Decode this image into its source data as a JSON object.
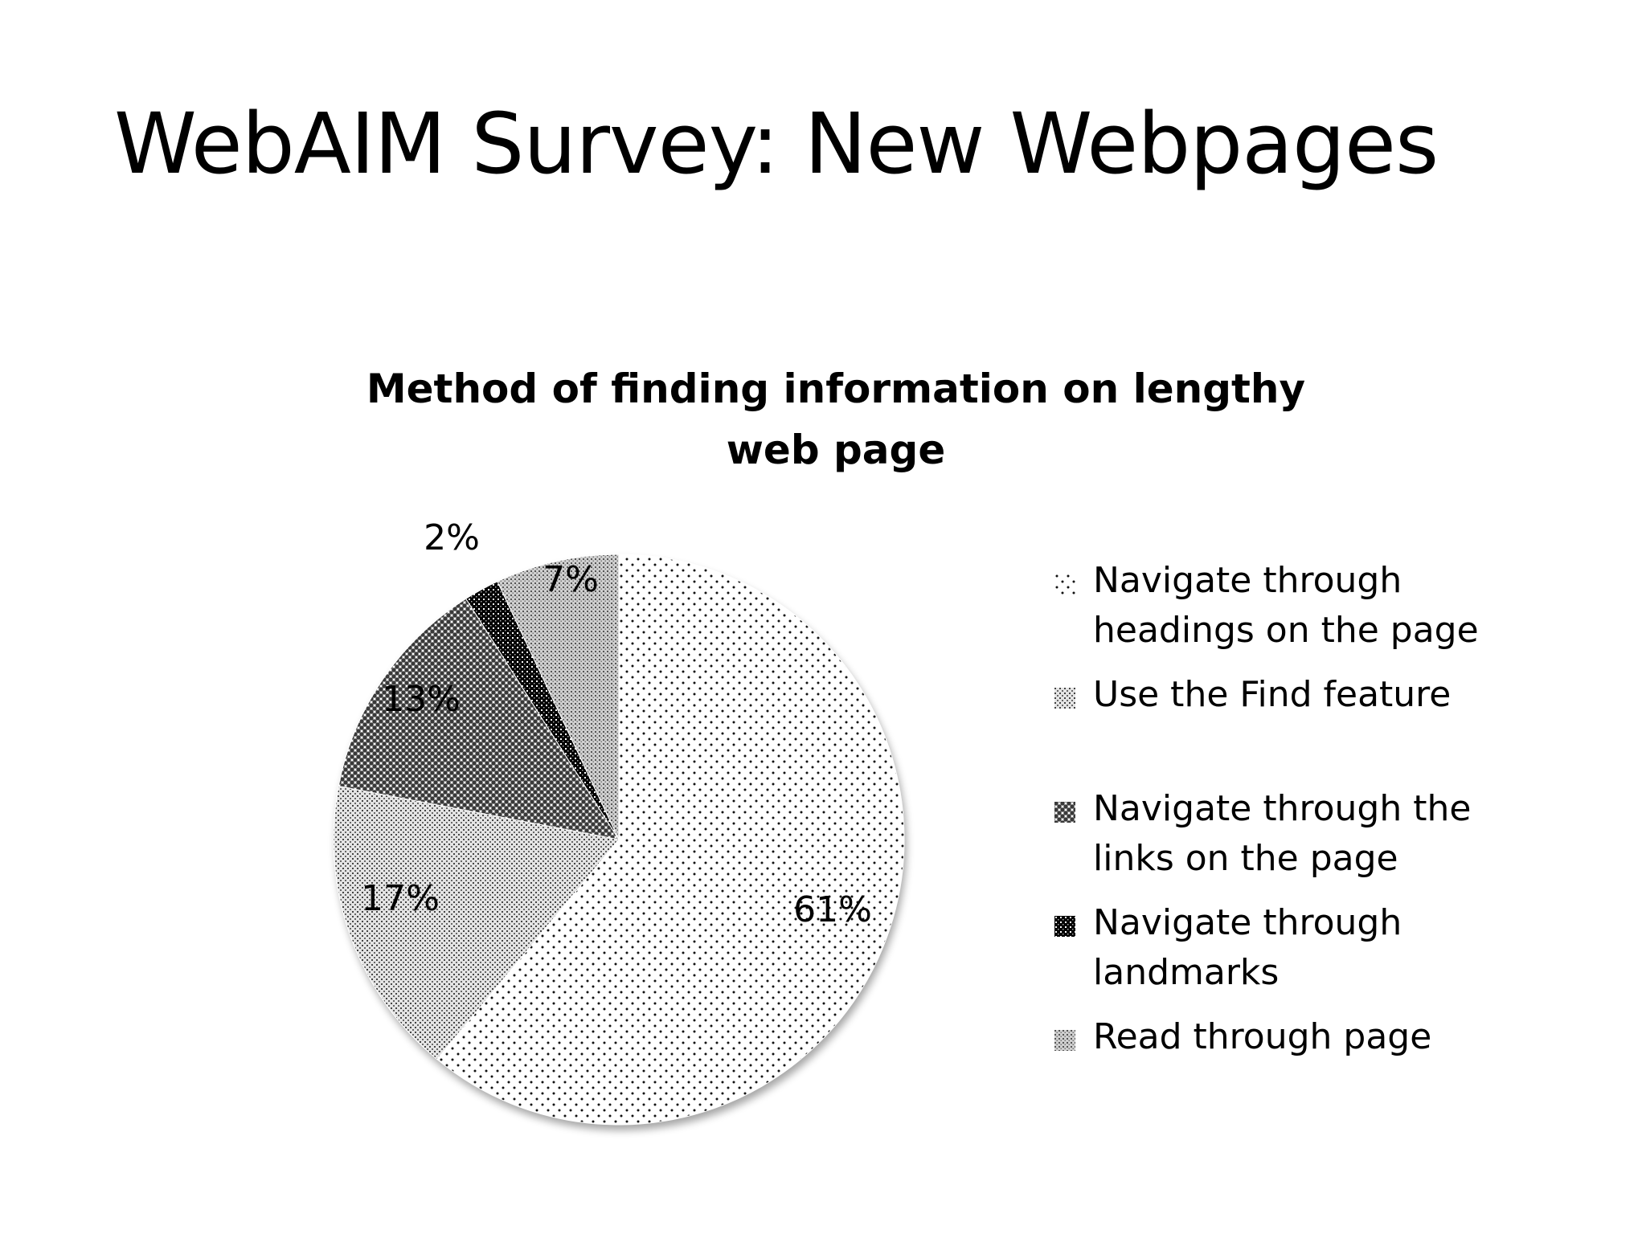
{
  "slide": {
    "title": "WebAIM Survey: New Webpages"
  },
  "chart_data": {
    "type": "pie",
    "title": "Method of finding information on lengthy web page",
    "categories": [
      "Navigate through headings on the page",
      "Use the Find feature",
      "Navigate through the links on the page",
      "Navigate through landmarks",
      "Read through page"
    ],
    "values": [
      61,
      17,
      13,
      2,
      7
    ],
    "data_labels": [
      "61%",
      "17%",
      "13%",
      "2%",
      "7%"
    ],
    "legend_position": "right",
    "slice_patterns": [
      "sparse-dots",
      "light-stipple",
      "checker",
      "dark-checker",
      "fine-stipple"
    ],
    "colors": {
      "background": "#ffffff",
      "ink": "#000000"
    }
  }
}
